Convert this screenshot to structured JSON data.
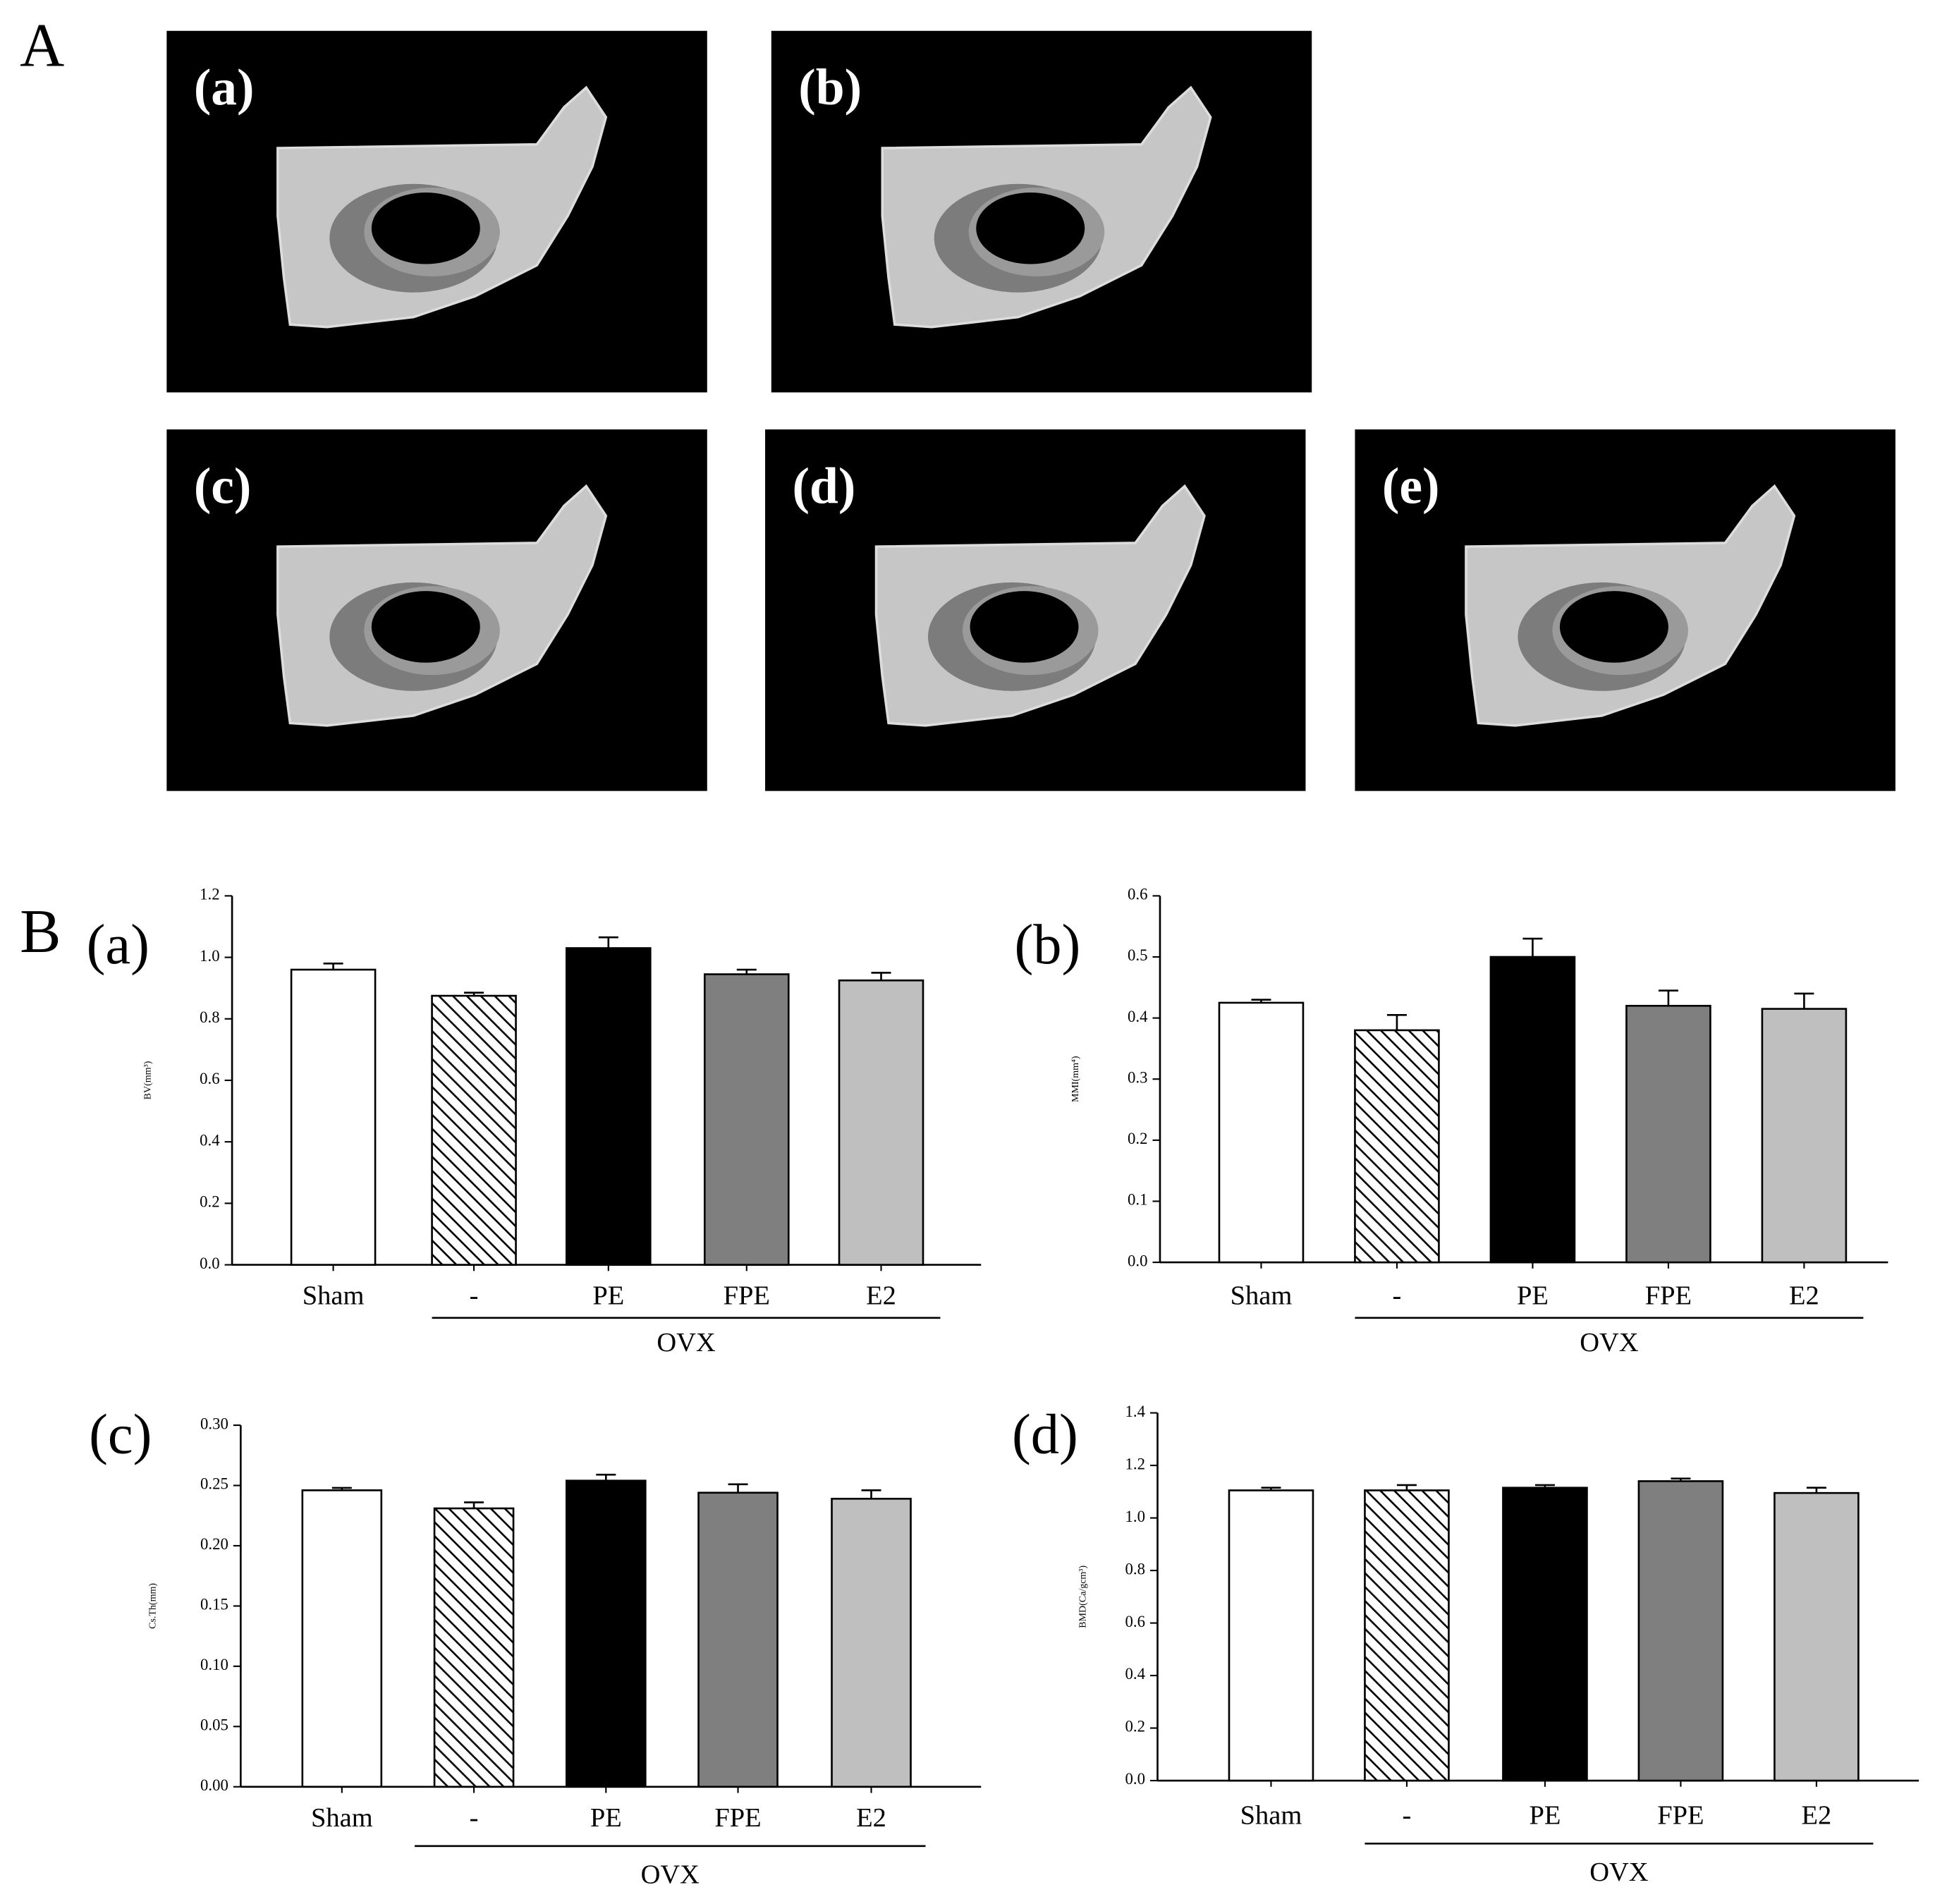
{
  "figure_label_a": "A",
  "figure_label_b": "B",
  "images": [
    "(a)",
    "(b)",
    "(c)",
    "(d)",
    "(e)"
  ],
  "chart_data": [
    {
      "type": "bar",
      "panel": "(a)",
      "ylabel": "BV(mm³)",
      "categories": [
        "Sham",
        "-",
        "PE",
        "FPE",
        "E2"
      ],
      "group_label": "OVX",
      "values": [
        0.96,
        0.875,
        1.03,
        0.945,
        0.925
      ],
      "errors": [
        0.02,
        0.01,
        0.035,
        0.015,
        0.025
      ],
      "colors": [
        "#ffffff",
        "#ffffff",
        "#000000",
        "#7f7f7f",
        "#bfbfbf"
      ],
      "hatch": [
        false,
        true,
        false,
        false,
        false
      ],
      "ylim": [
        0,
        1.2
      ],
      "yticks": [
        {
          "value": 0,
          "label": "0.0"
        },
        {
          "value": 0.2,
          "label": "0.2"
        },
        {
          "value": 0.4,
          "label": "0.4"
        },
        {
          "value": 0.6,
          "label": "0.6"
        },
        {
          "value": 0.8,
          "label": "0.8"
        },
        {
          "value": 1.0,
          "label": "1.0"
        },
        {
          "value": 1.2,
          "label": "1.2"
        }
      ]
    },
    {
      "type": "bar",
      "panel": "(b)",
      "ylabel": "MMI(mm⁴)",
      "categories": [
        "Sham",
        "-",
        "PE",
        "FPE",
        "E2"
      ],
      "group_label": "OVX",
      "values": [
        0.425,
        0.38,
        0.5,
        0.42,
        0.415
      ],
      "errors": [
        0.005,
        0.025,
        0.03,
        0.025,
        0.025
      ],
      "colors": [
        "#ffffff",
        "#ffffff",
        "#000000",
        "#7f7f7f",
        "#bfbfbf"
      ],
      "hatch": [
        false,
        true,
        false,
        false,
        false
      ],
      "ylim": [
        0,
        0.6
      ],
      "yticks": [
        {
          "value": 0,
          "label": "0.0"
        },
        0.1,
        0.2,
        0.3,
        0.4,
        0.5,
        0.6
      ]
    },
    {
      "type": "bar",
      "panel": "(c)",
      "ylabel": "Cs.Th(mm)",
      "categories": [
        "Sham",
        "-",
        "PE",
        "FPE",
        "E2"
      ],
      "group_label": "OVX",
      "values": [
        0.246,
        0.231,
        0.254,
        0.244,
        0.239
      ],
      "errors": [
        0.002,
        0.005,
        0.005,
        0.007,
        0.007
      ],
      "colors": [
        "#ffffff",
        "#ffffff",
        "#000000",
        "#7f7f7f",
        "#bfbfbf"
      ],
      "hatch": [
        false,
        true,
        false,
        false,
        false
      ],
      "ylim": [
        0,
        0.3
      ],
      "yticks": [
        {
          "value": 0,
          "label": "0.00"
        },
        0.05,
        {
          "value": 0.1,
          "label": "0.10"
        },
        0.15,
        {
          "value": 0.2,
          "label": "0.20"
        },
        0.25,
        {
          "value": 0.3,
          "label": "0.30"
        }
      ]
    },
    {
      "type": "bar",
      "panel": "(d)",
      "ylabel": "BMD(Ca/gcm³)",
      "categories": [
        "Sham",
        "-",
        "PE",
        "FPE",
        "E2"
      ],
      "group_label": "OVX",
      "values": [
        1.105,
        1.105,
        1.115,
        1.14,
        1.095
      ],
      "errors": [
        0.01,
        0.02,
        0.01,
        0.01,
        0.02
      ],
      "colors": [
        "#ffffff",
        "#ffffff",
        "#000000",
        "#7f7f7f",
        "#bfbfbf"
      ],
      "hatch": [
        false,
        true,
        false,
        false,
        false
      ],
      "ylim": [
        0,
        1.4
      ],
      "yticks": [
        {
          "value": 0,
          "label": "0.0"
        },
        0.2,
        0.4,
        0.6,
        0.8,
        {
          "value": 1.0,
          "label": "1.0"
        },
        1.2,
        1.4
      ]
    }
  ]
}
